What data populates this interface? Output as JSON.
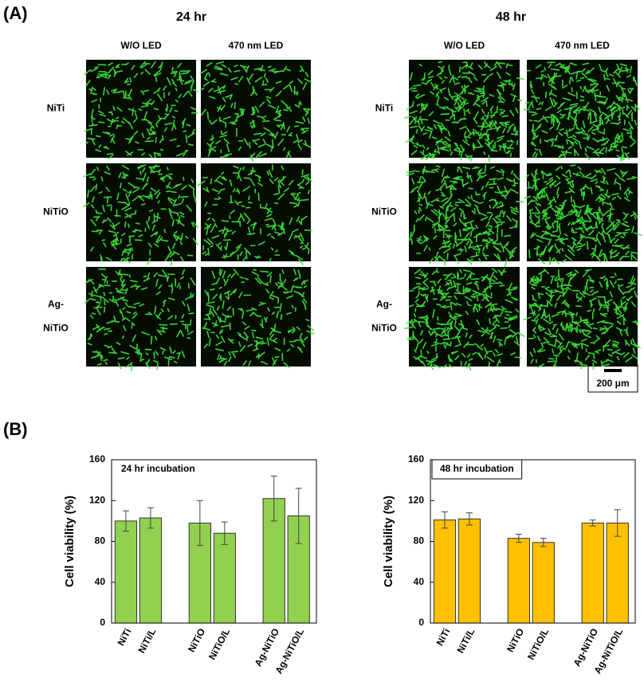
{
  "panel_a": {
    "label": "(A)",
    "groups": [
      {
        "title": "24 hr",
        "columns": [
          "W/O LED",
          "470 nm LED"
        ],
        "rows": [
          [
            "NiTi"
          ],
          [
            "NiTiO"
          ],
          [
            "Ag-",
            "NiTiO"
          ]
        ]
      },
      {
        "title": "48 hr",
        "columns": [
          "W/O LED",
          "470 nm LED"
        ],
        "rows": [
          [
            "NiTi"
          ],
          [
            "NiTiO"
          ],
          [
            "Ag-",
            "NiTiO"
          ]
        ]
      }
    ],
    "scale_bar": "200 μm"
  },
  "panel_b": {
    "label": "(B)"
  },
  "chart_data": [
    {
      "type": "bar",
      "title": "24 hr incubation",
      "title_boxed": false,
      "ylabel": "Cell viability (%)",
      "categories": [
        "NiTi",
        "NiTi/L",
        "NiTiO",
        "NiTiO/L",
        "Ag-NiTiO",
        "Ag-NiTiO/L"
      ],
      "values": [
        100,
        103,
        98,
        88,
        122,
        105
      ],
      "errors": [
        10,
        10,
        22,
        11,
        22,
        27
      ],
      "color": "#92d050",
      "ylim": [
        0,
        160
      ],
      "yticks": [
        0,
        40,
        80,
        120,
        160
      ]
    },
    {
      "type": "bar",
      "title": "48 hr incubation",
      "title_boxed": true,
      "ylabel": "Cell viability (%)",
      "categories": [
        "NiTi",
        "NiTi/L",
        "NiTiO",
        "NiTiO/L",
        "Ag-NiTiO",
        "Ag-NiTiO/L"
      ],
      "values": [
        101,
        102,
        83,
        79,
        98,
        98
      ],
      "errors": [
        8,
        6,
        4,
        4,
        3,
        13
      ],
      "color": "#ffc000",
      "ylim": [
        0,
        160
      ],
      "yticks": [
        0,
        40,
        80,
        120,
        160
      ]
    }
  ]
}
